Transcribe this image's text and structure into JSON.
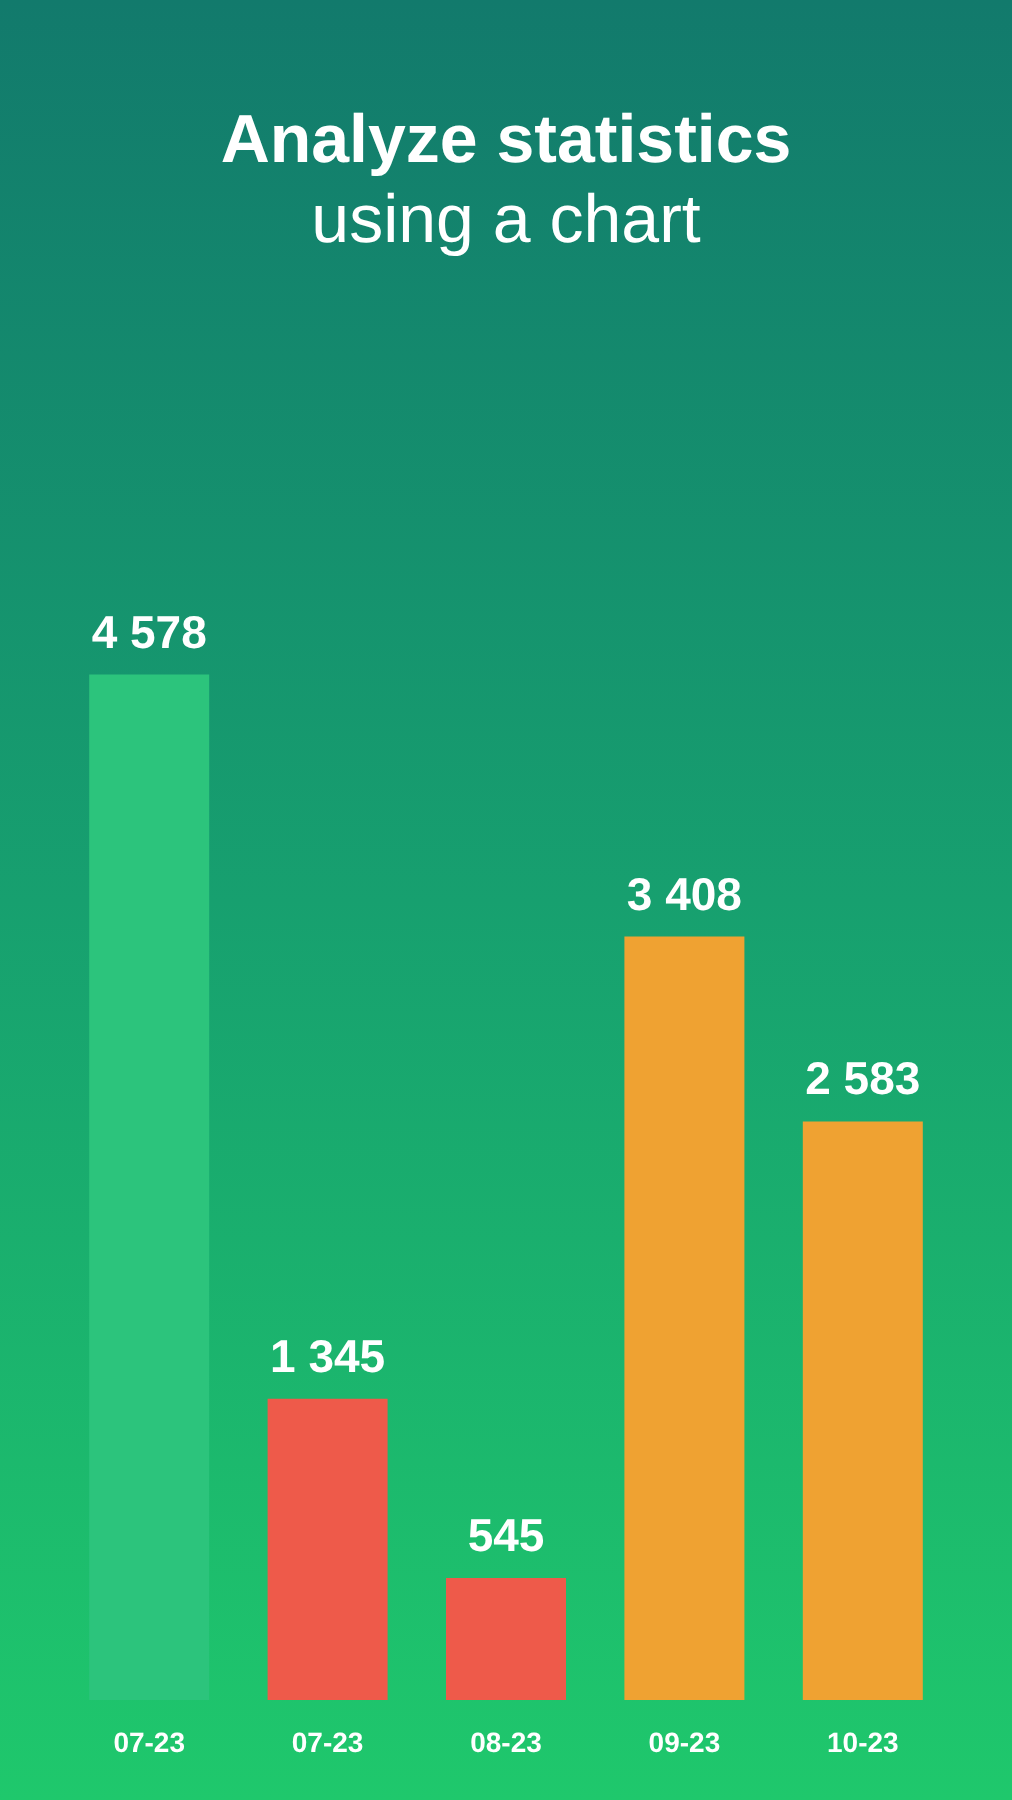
{
  "chart_data": {
    "type": "bar",
    "title": "Analyze statistics",
    "subtitle": "using a chart",
    "categories": [
      "07-23",
      "07-23",
      "08-23",
      "09-23",
      "10-23"
    ],
    "values": [
      4578,
      1345,
      545,
      3408,
      2583
    ],
    "value_labels": [
      "4 578",
      "1 345",
      "545",
      "3 408",
      "2 583"
    ],
    "colors": [
      "#2cc47c",
      "#ee5a4a",
      "#ee5a4a",
      "#efa232",
      "#efa232"
    ],
    "grid": false,
    "tick_labels": "x"
  }
}
